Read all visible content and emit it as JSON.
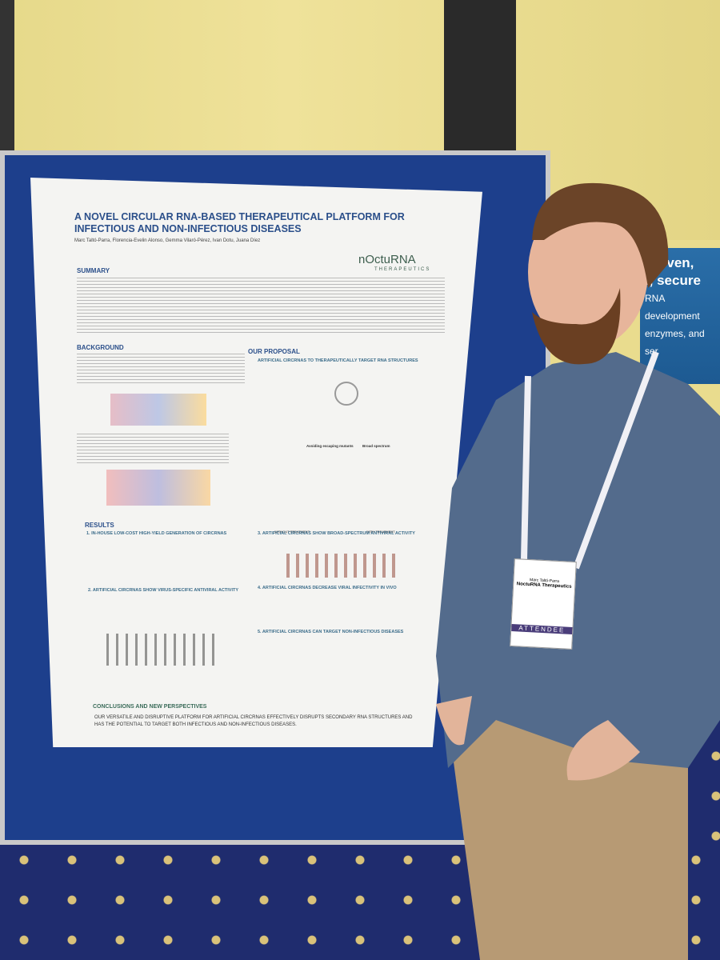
{
  "poster": {
    "title": "A NOVEL CIRCULAR RNA-BASED THERAPEUTICAL PLATFORM FOR INFECTIOUS AND NON-INFECTIOUS DISEASES",
    "authors": "Marc Taltó-Parra, Florencia-Evelin Alonso, Gemma Vilaró-Pérez, Ivan Dotu, Juana Díez",
    "logo": "nOctuRNA",
    "logo_sub": "THERAPEUTICS",
    "summary_heading": "SUMMARY",
    "background_heading": "BACKGROUND",
    "proposal_heading": "OUR PROPOSAL",
    "proposal_subtitle": "ARTIFICIAL CIRCRNAS TO THERAPEUTICALLY TARGET RNA STRUCTURES",
    "proposal_labels": [
      "Avoiding escaping mutants",
      "Broad spectrum"
    ],
    "treatment_labels": [
      "WITHOUT TREATMENT",
      "WITH TREATMENT"
    ],
    "results_heading": "RESULTS",
    "results": [
      "1. IN-HOUSE LOW-COST HIGH-YIELD GENERATION OF CIRCRNAS",
      "2. ARTIFICIAL CIRCRNAS SHOW VIRUS-SPECIFIC ANTIVIRAL ACTIVITY",
      "3. ARTIFICIAL CIRCRNAS SHOW BROAD-SPECTRUM ANTIVIRAL ACTIVITY",
      "4. ARTIFICIAL CIRCRNAS DECREASE VIRAL INFECTIVITY IN VIVO",
      "5. ARTIFICIAL CIRCRNAS CAN TARGET NON-INFECTIOUS DISEASES"
    ],
    "conclusions_heading": "CONCLUSIONS AND NEW PERSPECTIVES",
    "conclusions": "OUR VERSATILE AND DISRUPTIVE PLATFORM FOR ARTIFICIAL CIRCRNAS EFFECTIVELY DISRUPTS SECONDARY RNA STRUCTURES AND HAS THE POTENTIAL TO TARGET BOTH INFECTIOUS AND NON-INFECTIOUS DISEASES."
  },
  "badge": {
    "name": "Marc Taltó-Parra",
    "company": "NoctuRNA Therapeutics",
    "role": "ATTENDEE"
  },
  "sign": {
    "lines": [
      "proven,",
      "t, secure",
      "RNA development",
      "enzymes, and ser"
    ]
  }
}
